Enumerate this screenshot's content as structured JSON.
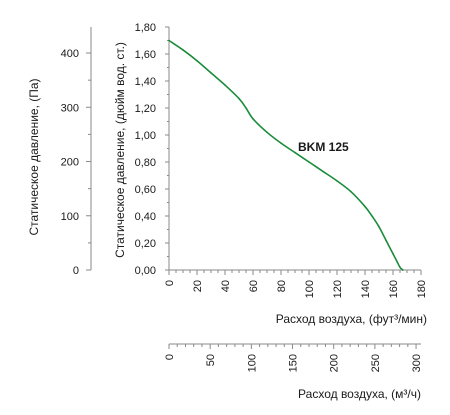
{
  "chart_data": {
    "type": "line",
    "axes": {
      "pa": {
        "label": "Статическое давление, (Па)",
        "ticks": [
          "0",
          "100",
          "200",
          "300",
          "400"
        ],
        "range": [
          0,
          448
        ]
      },
      "inwg": {
        "label": "Статическое давление, (дюйм вод. ст.)",
        "ticks": [
          "0,00",
          "0,20",
          "0,40",
          "0,60",
          "0,80",
          "1,00",
          "1,20",
          "1,40",
          "1,60",
          "1,80"
        ],
        "range": [
          0,
          1.8
        ]
      },
      "cfm": {
        "label": "Расход воздуха, (фут³/мин)",
        "ticks": [
          "0",
          "20",
          "40",
          "60",
          "80",
          "100",
          "120",
          "140",
          "160",
          "180"
        ],
        "range": [
          0,
          180
        ]
      },
      "m3h": {
        "label": "Расход воздуха, (м³/ч)",
        "ticks": [
          "0",
          "50",
          "100",
          "150",
          "200",
          "250",
          "300"
        ],
        "range": [
          0,
          306
        ]
      }
    },
    "series": [
      {
        "name": "BKM 125",
        "color": "#1a8c3a",
        "x": [
          0,
          10,
          20,
          30,
          40,
          50,
          55,
          60,
          70,
          80,
          90,
          100,
          110,
          120,
          130,
          140,
          145,
          150,
          155,
          160,
          163,
          165,
          167
        ],
        "y": [
          1.7,
          1.63,
          1.55,
          1.46,
          1.37,
          1.27,
          1.2,
          1.12,
          1.02,
          0.94,
          0.87,
          0.8,
          0.73,
          0.66,
          0.58,
          0.47,
          0.4,
          0.32,
          0.22,
          0.12,
          0.06,
          0.02,
          0.0
        ]
      }
    ]
  }
}
